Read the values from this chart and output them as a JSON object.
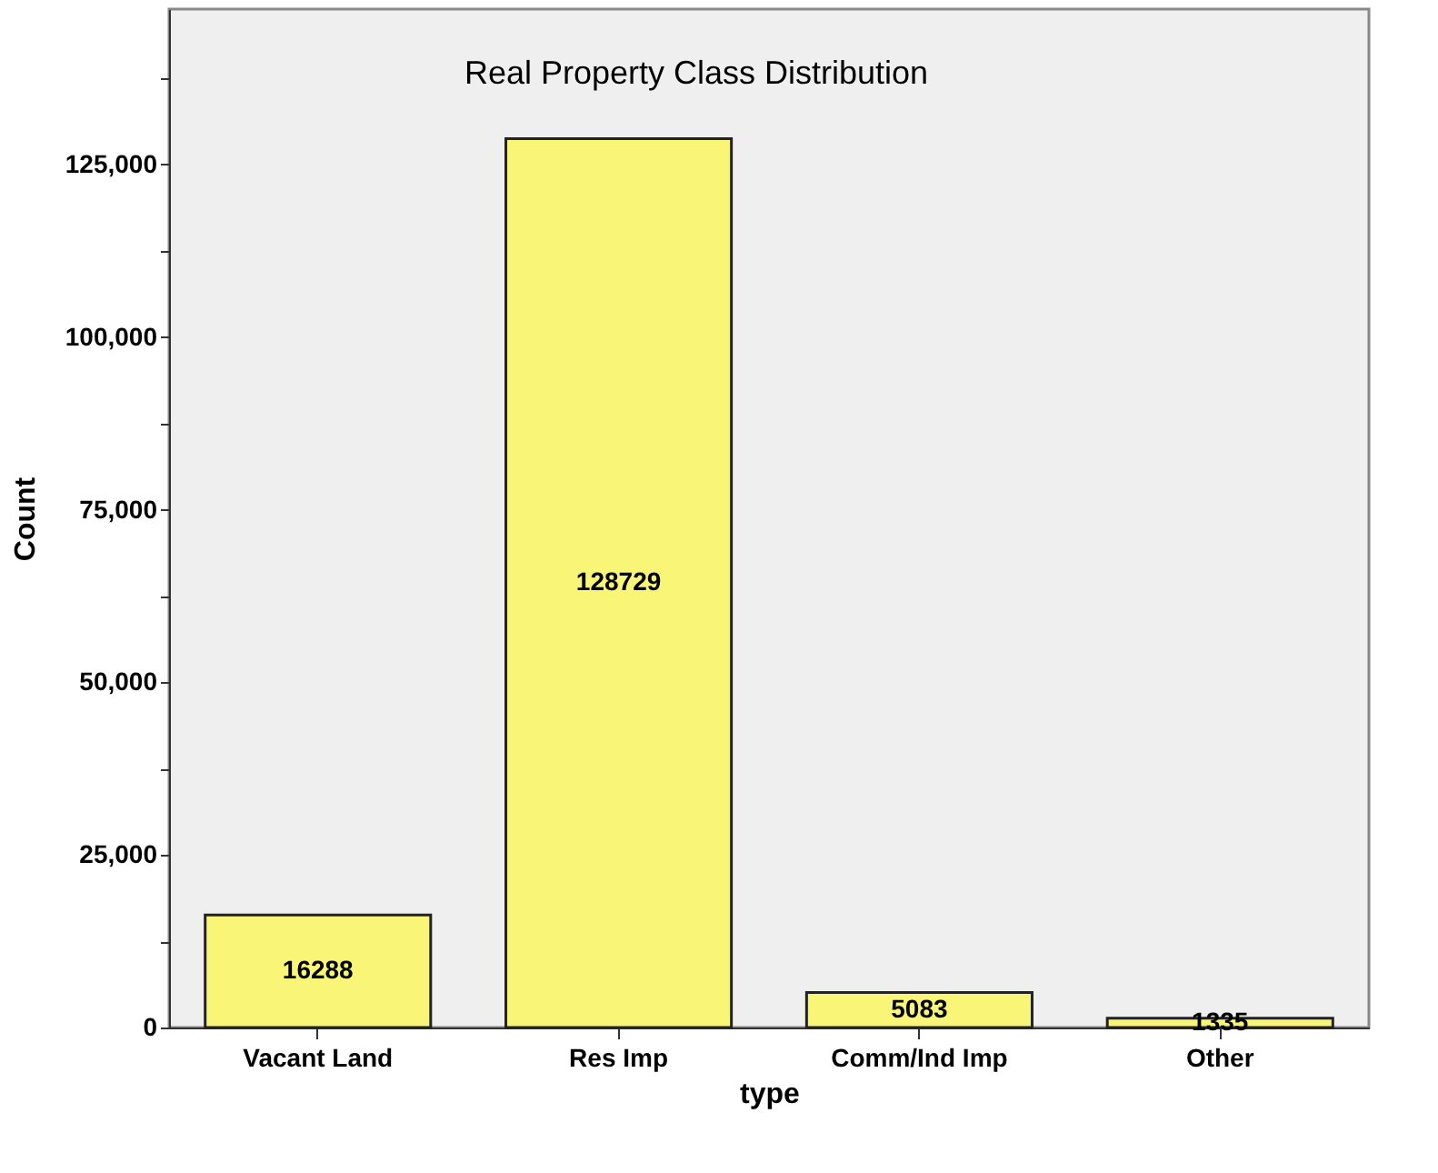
{
  "chart_data": {
    "type": "bar",
    "title": "Real Property Class Distribution",
    "xlabel": "type",
    "ylabel": "Count",
    "categories": [
      "Vacant Land",
      "Res Imp",
      "Comm/Ind Imp",
      "Other"
    ],
    "values": [
      16288,
      128729,
      5083,
      1335
    ],
    "color": "#f8f577",
    "ylim": [
      0,
      147500
    ],
    "yticks": [
      0,
      {
        "value": 12500,
        "label": null
      },
      {
        "value": 25000,
        "label": "25,000"
      },
      {
        "value": 37500,
        "label": null
      },
      {
        "value": 50000,
        "label": "50,000"
      },
      {
        "value": 62500,
        "label": null
      },
      {
        "value": 75000,
        "label": "75,000"
      },
      {
        "value": 87500,
        "label": null
      },
      {
        "value": 100000,
        "label": "100,000"
      },
      {
        "value": 112500,
        "label": null
      },
      {
        "value": 125000,
        "label": "125,000"
      },
      {
        "value": 137500,
        "label": null
      }
    ],
    "data_labels": true,
    "grid": false
  }
}
